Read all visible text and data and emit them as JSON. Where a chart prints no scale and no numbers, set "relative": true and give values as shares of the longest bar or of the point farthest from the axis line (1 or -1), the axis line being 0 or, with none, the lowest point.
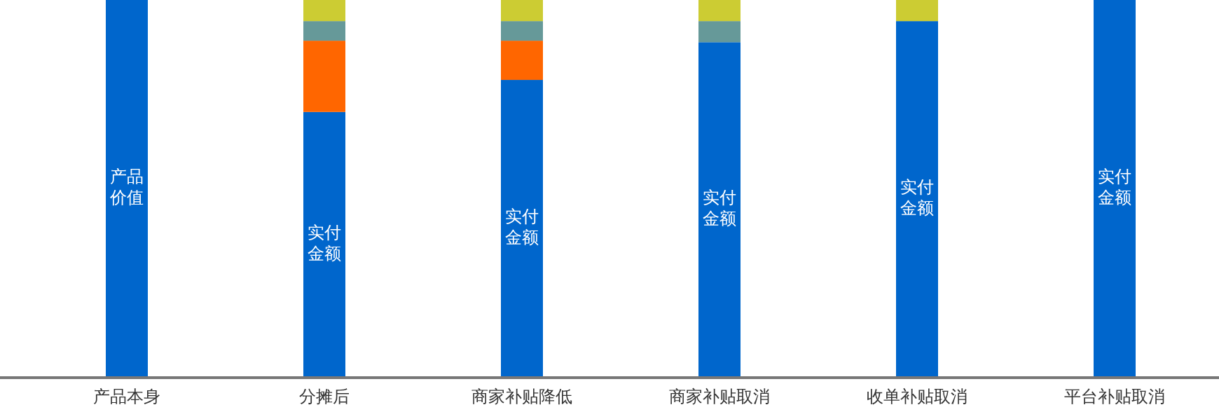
{
  "chart_data": {
    "type": "bar",
    "stacked": true,
    "relative": true,
    "categories": [
      "产品本身",
      "分摊后",
      "商家补贴降低",
      "商家补贴取消",
      "收单补贴取消",
      "平台补贴取消"
    ],
    "series": [
      {
        "color": "#0066cc",
        "values": [
          1,
          0.703,
          0.788,
          0.888,
          0.944,
          1
        ]
      },
      {
        "color": "#ff6600",
        "values": [
          0,
          0.189,
          0.104,
          0,
          0,
          0
        ]
      },
      {
        "color": "#669999",
        "values": [
          0,
          0.052,
          0.052,
          0.056,
          0,
          0
        ]
      },
      {
        "color": "#cccc33",
        "values": [
          0,
          0.056,
          0.056,
          0.056,
          0.056,
          0
        ]
      }
    ],
    "annotations": [
      "产品价值",
      "实付金额",
      "实付金额",
      "实付金额",
      "实付金额",
      "实付金额"
    ]
  }
}
